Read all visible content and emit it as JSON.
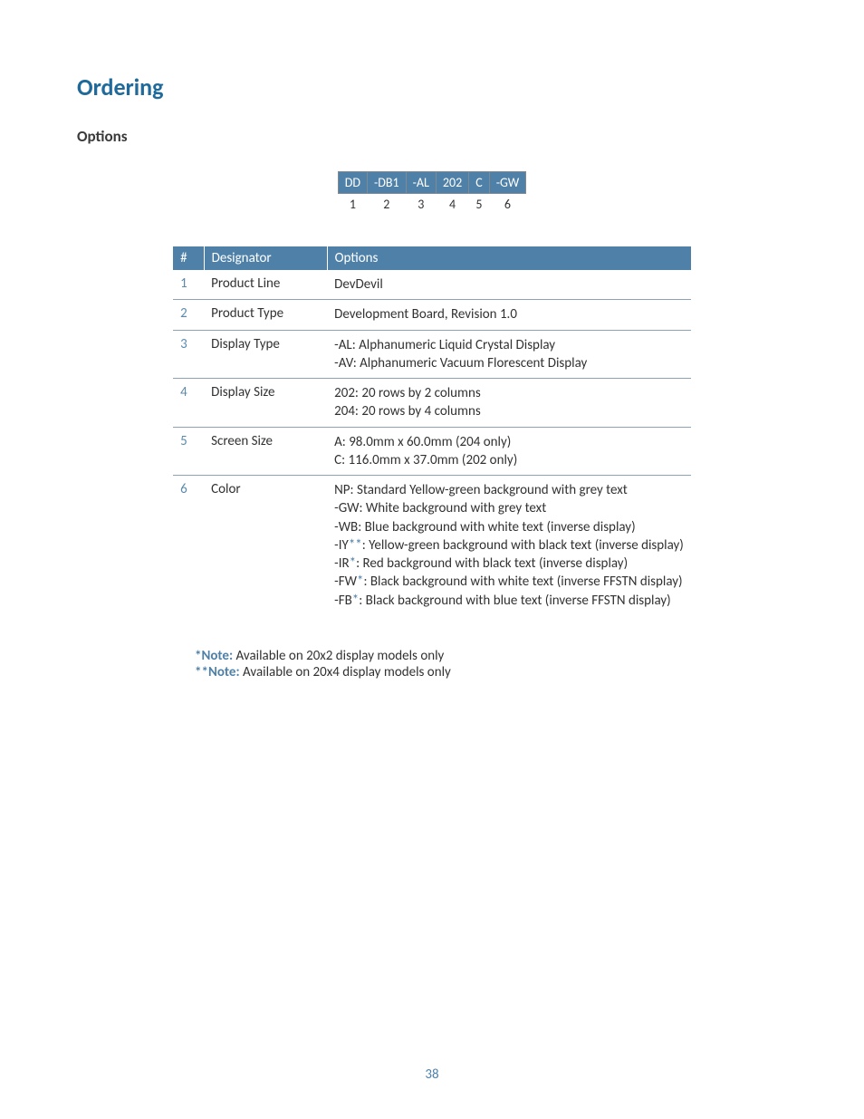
{
  "colors": {
    "accent": "#1f6a9a",
    "table_header_bg": "#4f81a8",
    "table_header_text": "#ffffff",
    "border": "#7f8a94",
    "row_border": "#8da3b5",
    "text": "#323232",
    "index_text": "#5c8aac",
    "note_label": "#4f81a8",
    "background": "#ffffff"
  },
  "page": {
    "heading": "Ordering",
    "subheading": "Options",
    "number": "38"
  },
  "code_table": {
    "codes": [
      "DD",
      "-DB1",
      "-AL",
      "202",
      "C",
      "-GW"
    ],
    "indices": [
      "1",
      "2",
      "3",
      "4",
      "5",
      "6"
    ]
  },
  "options_table": {
    "headers": [
      "#",
      "Designator",
      "Options"
    ],
    "rows": [
      {
        "idx": "1",
        "designator": "Product Line",
        "options": [
          "DevDevil"
        ]
      },
      {
        "idx": "2",
        "designator": "Product Type",
        "options": [
          "Development Board, Revision 1.0"
        ]
      },
      {
        "idx": "3",
        "designator": "Display Type",
        "options": [
          "-AL: Alphanumeric Liquid Crystal Display",
          "-AV: Alphanumeric Vacuum Florescent Display"
        ]
      },
      {
        "idx": "4",
        "designator": "Display Size",
        "options": [
          "202: 20 rows by 2 columns",
          "204: 20 rows by 4 columns"
        ]
      },
      {
        "idx": "5",
        "designator": "Screen Size",
        "options": [
          "A: 98.0mm x 60.0mm (204 only)",
          "C: 116.0mm x 37.0mm (202 only)"
        ]
      },
      {
        "idx": "6",
        "designator": "Color",
        "options": [
          {
            "text": "NP: Standard Yellow-green background with grey text"
          },
          {
            "text": "-GW: White background with grey text"
          },
          {
            "text": "-WB: Blue background with white text (inverse display)"
          },
          {
            "prefix": "-IY",
            "star": "**",
            "rest": ": Yellow-green background with black text (inverse display)"
          },
          {
            "prefix": "-IR",
            "star": "*",
            "rest": ": Red background with black text (inverse display)"
          },
          {
            "prefix": "-FW",
            "star": "*",
            "rest": ": Black background with white text (inverse FFSTN display)"
          },
          {
            "prefix": "-FB",
            "star": "*",
            "rest": ": Black background with blue text (inverse FFSTN display)"
          }
        ]
      }
    ]
  },
  "notes": [
    {
      "label": "*Note:",
      "text": " Available on 20x2 display models only"
    },
    {
      "label": "**Note:",
      "text": " Available on 20x4 display models only"
    }
  ]
}
